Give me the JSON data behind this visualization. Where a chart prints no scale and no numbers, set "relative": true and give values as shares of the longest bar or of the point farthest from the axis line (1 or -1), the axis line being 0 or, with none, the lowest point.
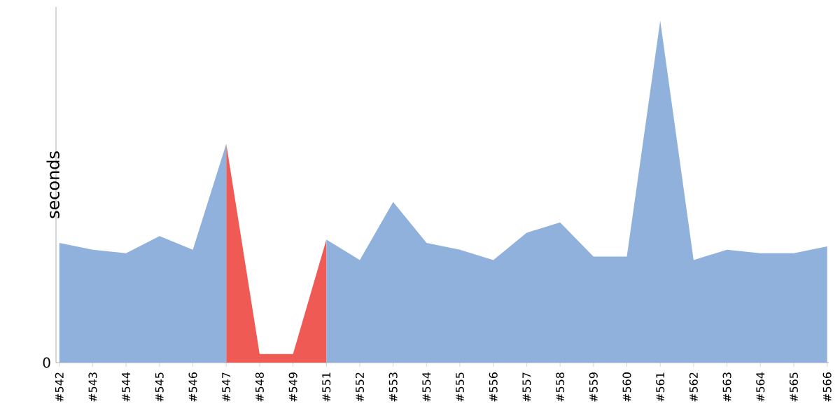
{
  "chart_data": {
    "type": "area",
    "relative": true,
    "ylabel": "seconds",
    "annotations": [
      "0"
    ],
    "categories": [
      "#542",
      "#543",
      "#544",
      "#545",
      "#546",
      "#547",
      "#548",
      "#549",
      "#551",
      "#552",
      "#553",
      "#554",
      "#555",
      "#556",
      "#557",
      "#558",
      "#559",
      "#560",
      "#561",
      "#562",
      "#563",
      "#564",
      "#565",
      "#566"
    ],
    "series": [
      {
        "color": "#f05a55",
        "values": [
          null,
          null,
          null,
          null,
          null,
          0.64,
          0.025,
          0.025,
          0.36,
          null,
          null,
          null,
          null,
          null,
          null,
          null,
          null,
          null,
          null,
          null,
          null,
          null,
          null,
          null
        ]
      },
      {
        "color": "#8fb1dc",
        "values": [
          0.35,
          0.33,
          0.32,
          0.37,
          0.33,
          0.64,
          null,
          null,
          0.36,
          0.3,
          0.47,
          0.35,
          0.33,
          0.3,
          0.38,
          0.41,
          0.31,
          0.31,
          1,
          0.3,
          0.33,
          0.32,
          0.32,
          0.34
        ]
      }
    ]
  }
}
